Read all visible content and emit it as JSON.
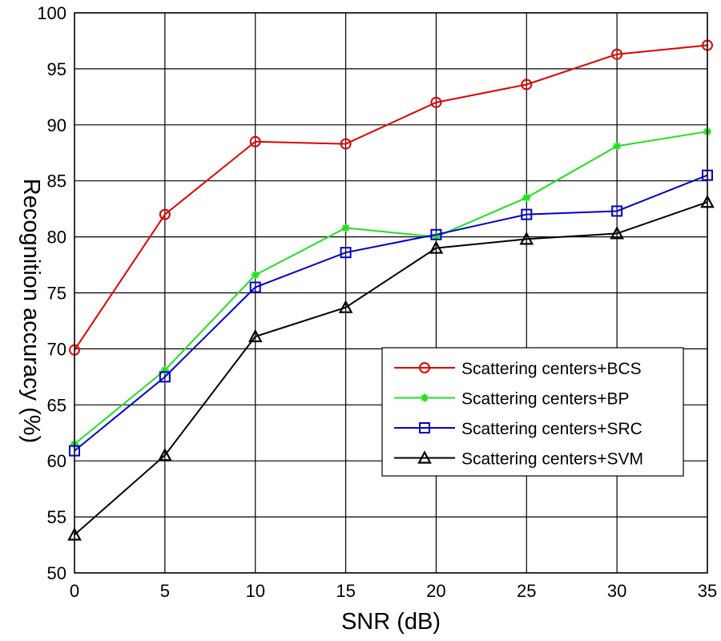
{
  "chart_data": {
    "type": "line",
    "title": "",
    "xlabel": "SNR (dB)",
    "ylabel": "Recognition accuracy (%)",
    "x": [
      0,
      5,
      10,
      15,
      20,
      25,
      30,
      35
    ],
    "xlim": [
      0,
      35
    ],
    "ylim": [
      50,
      100
    ],
    "xticks": [
      0,
      5,
      10,
      15,
      20,
      25,
      30,
      35
    ],
    "yticks": [
      50,
      55,
      60,
      65,
      70,
      75,
      80,
      85,
      90,
      95,
      100
    ],
    "grid": true,
    "legend_position": "lower-right",
    "series": [
      {
        "name": "Scattering centers+BCS",
        "color": "#e00000",
        "marker": "circle",
        "values": [
          69.9,
          82.0,
          88.5,
          88.3,
          92.0,
          93.6,
          96.3,
          97.1
        ]
      },
      {
        "name": "Scattering centers+BP",
        "color": "#22e022",
        "marker": "star",
        "values": [
          61.5,
          68.1,
          76.6,
          80.8,
          80.0,
          83.5,
          88.1,
          89.4
        ]
      },
      {
        "name": "Scattering centers+SRC",
        "color": "#0000cc",
        "marker": "square",
        "values": [
          60.9,
          67.5,
          75.5,
          78.6,
          80.2,
          82.0,
          82.3,
          85.5
        ]
      },
      {
        "name": "Scattering centers+SVM",
        "color": "#000000",
        "marker": "triangle",
        "values": [
          53.4,
          60.5,
          71.1,
          73.7,
          79.0,
          79.8,
          80.3,
          83.1
        ]
      }
    ]
  }
}
